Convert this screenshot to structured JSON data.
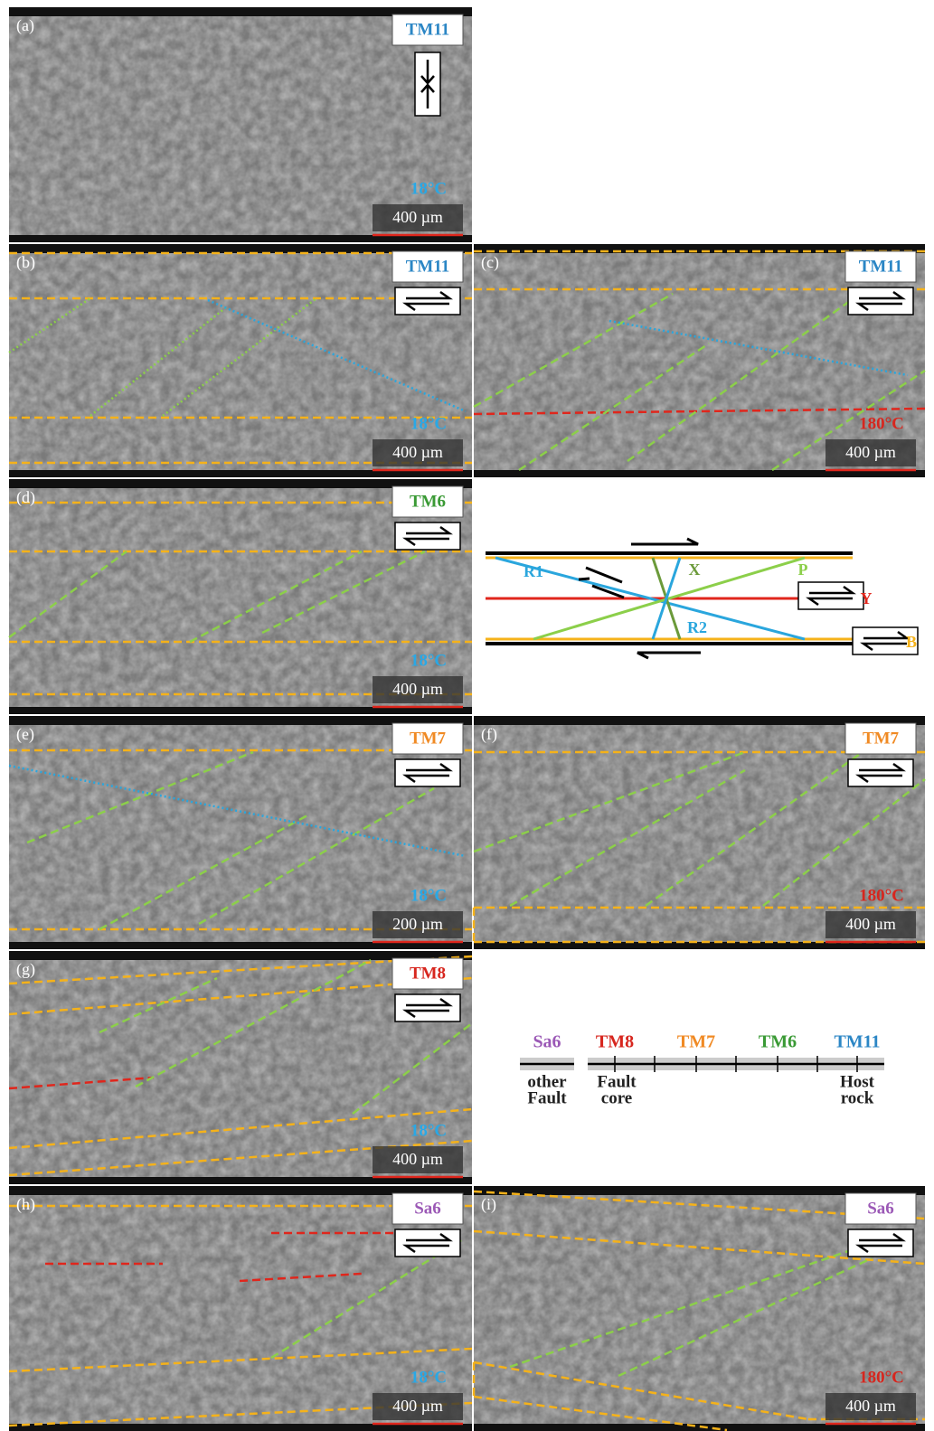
{
  "panels": [
    {
      "label": "(a)",
      "sample": "TM11",
      "sample_color": "#2b86c5",
      "temperature": "18°C",
      "temperature_color": "#29a8e6",
      "scale": "400 µm"
    },
    {
      "label": "(b)",
      "sample": "TM11",
      "sample_color": "#2b86c5",
      "temperature": "18°C",
      "temperature_color": "#29a8e6",
      "scale": "400 µm"
    },
    {
      "label": "(c)",
      "sample": "TM11",
      "sample_color": "#2b86c5",
      "temperature": "180°C",
      "temperature_color": "#d7261e",
      "scale": "400 µm"
    },
    {
      "label": "(d)",
      "sample": "TM6",
      "sample_color": "#3a9a35",
      "temperature": "18°C",
      "temperature_color": "#29a8e6",
      "scale": "400 µm"
    },
    {
      "label": "(e)",
      "sample": "TM7",
      "sample_color": "#f08a24",
      "temperature": "18°C",
      "temperature_color": "#29a8e6",
      "scale": "200 µm"
    },
    {
      "label": "(f)",
      "sample": "TM7",
      "sample_color": "#f08a24",
      "temperature": "180°C",
      "temperature_color": "#d7261e",
      "scale": "400 µm"
    },
    {
      "label": "(g)",
      "sample": "TM8",
      "sample_color": "#d7261e",
      "temperature": "18°C",
      "temperature_color": "#29a8e6",
      "scale": "400 µm"
    },
    {
      "label": "(h)",
      "sample": "Sa6",
      "sample_color": "#9b59b6",
      "temperature": "18°C",
      "temperature_color": "#29a8e6",
      "scale": "400 µm"
    },
    {
      "label": "(i)",
      "sample": "Sa6",
      "sample_color": "#9b59b6",
      "temperature": "180°C",
      "temperature_color": "#d7261e",
      "scale": "400 µm"
    }
  ],
  "diagram": {
    "labels": [
      "R1",
      "X",
      "P",
      "Y",
      "R2",
      "B"
    ]
  },
  "legend": {
    "samples": [
      {
        "name": "Sa6",
        "color": "#9b59b6"
      },
      {
        "name": "TM8",
        "color": "#d7261e"
      },
      {
        "name": "TM7",
        "color": "#f08a24"
      },
      {
        "name": "TM6",
        "color": "#3a9a35"
      },
      {
        "name": "TM11",
        "color": "#2b86c5"
      }
    ],
    "annotations": [
      [
        "other",
        "Fault"
      ],
      [
        "Fault",
        "core"
      ],
      [
        "Host",
        "rock"
      ]
    ]
  }
}
